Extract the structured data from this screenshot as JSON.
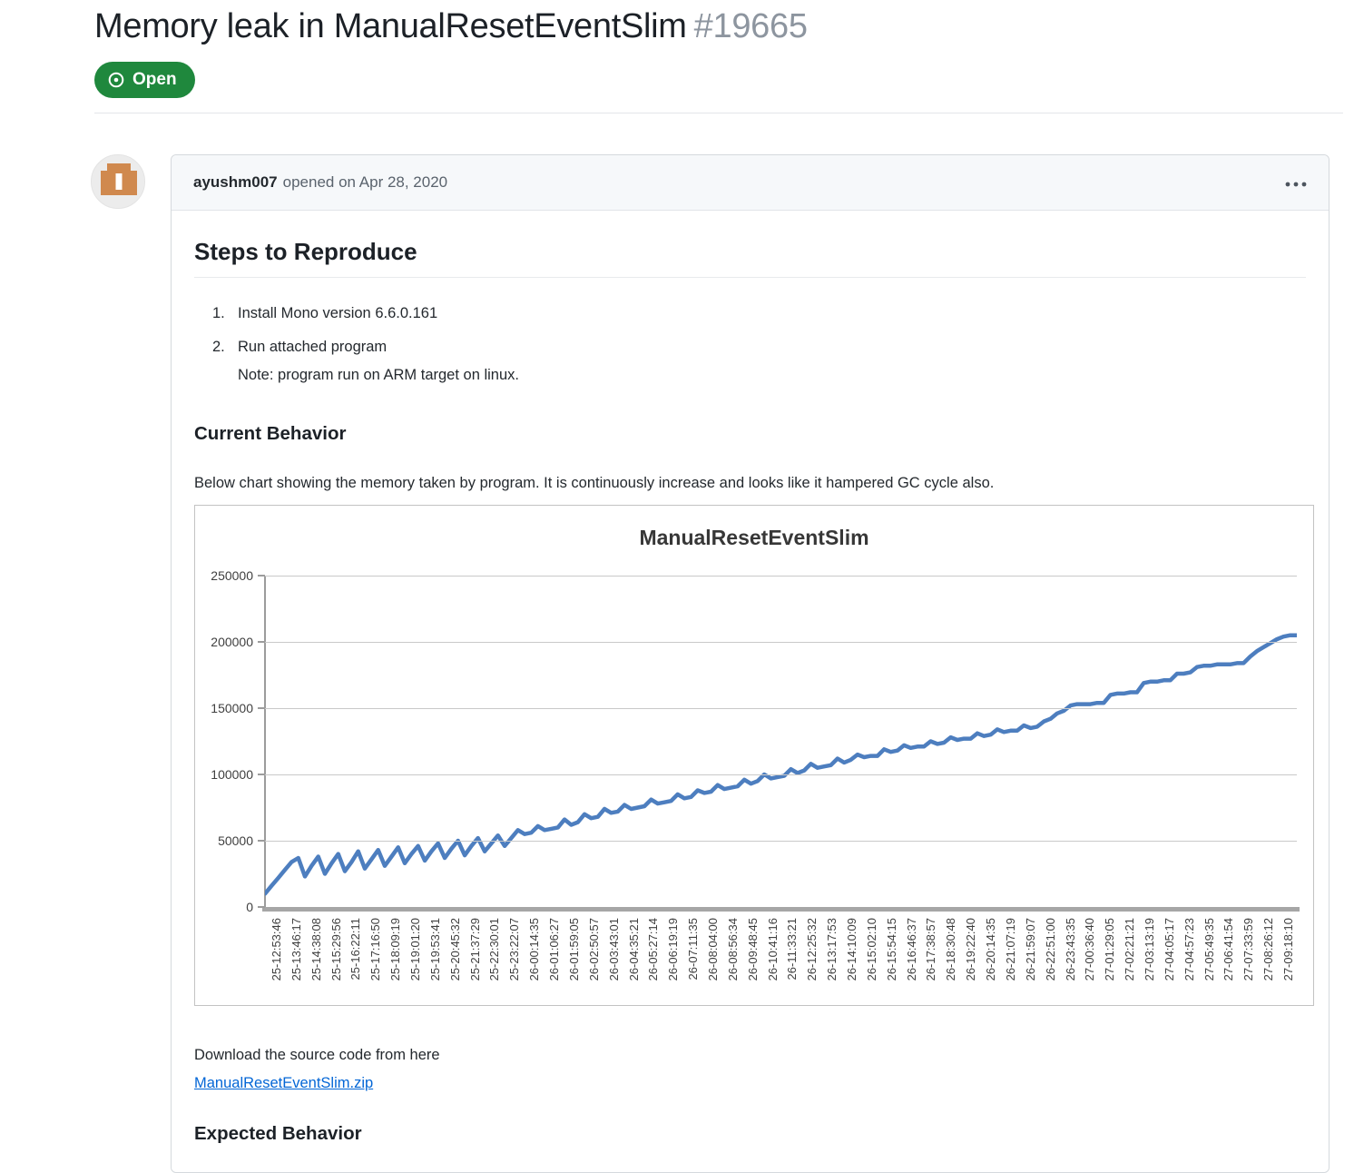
{
  "page": {
    "title": "Memory leak in ManualResetEventSlim",
    "issue_number": "#19665",
    "status_label": "Open"
  },
  "icons": {
    "status": "issue-opened-icon",
    "menu": "kebab-horizontal-icon"
  },
  "colors": {
    "open_badge_green": "#1f883d",
    "link_blue": "#0366d6",
    "chart_line_blue": "#4d7ebf",
    "gridline_gray": "#c9c9c9",
    "axis_gray": "#a6a6a6"
  },
  "comment": {
    "author": "ayushm007",
    "meta": "opened on Apr 28, 2020"
  },
  "body": {
    "heading_steps": "Steps to Reproduce",
    "steps": [
      {
        "marker": "1.",
        "text": "Install Mono version 6.6.0.161"
      },
      {
        "marker": "2.",
        "text": "Run attached program",
        "note": "Note: program run on ARM target on linux."
      }
    ],
    "heading_current": "Current Behavior",
    "current_text": "Below chart showing the memory taken by program. It is continuously increase and looks like it hampered GC cycle also.",
    "download_text": "Download the source code from here",
    "download_link": "ManualResetEventSlim.zip",
    "heading_expected": "Expected Behavior"
  },
  "chart_data": {
    "type": "line",
    "title": "ManualResetEventSlim",
    "xlabel": "",
    "ylabel": "",
    "ylim": [
      0,
      250000
    ],
    "yticks": [
      0,
      50000,
      100000,
      150000,
      200000,
      250000
    ],
    "grid": "horizontal",
    "legend": "none",
    "line_color": "#4d7ebf",
    "categories": [
      "25-12:53:46",
      "25-13:46:17",
      "25-14:38:08",
      "25-15:29:56",
      "25-16:22:11",
      "25-17:16:50",
      "25-18:09:19",
      "25-19:01:20",
      "25-19:53:41",
      "25-20:45:32",
      "25-21:37:29",
      "25-22:30:01",
      "25-23:22:07",
      "26-00:14:35",
      "26-01:06:27",
      "26-01:59:05",
      "26-02:50:57",
      "26-03:43:01",
      "26-04:35:21",
      "26-05:27:14",
      "26-06:19:19",
      "26-07:11:35",
      "26-08:04:00",
      "26-08:56:34",
      "26-09:48:45",
      "26-10:41:16",
      "26-11:33:21",
      "26-12:25:32",
      "26-13:17:53",
      "26-14:10:09",
      "26-15:02:10",
      "26-15:54:15",
      "26-16:46:37",
      "26-17:38:57",
      "26-18:30:48",
      "26-19:22:40",
      "26-20:14:35",
      "26-21:07:19",
      "26-21:59:07",
      "26-22:51:00",
      "26-23:43:35",
      "27-00:36:40",
      "27-01:29:05",
      "27-02:21:21",
      "27-03:13:19",
      "27-04:05:17",
      "27-04:57:23",
      "27-05:49:35",
      "27-06:41:54",
      "27-07:33:59",
      "27-08:26:12",
      "27-09:18:10"
    ],
    "values": [
      10000,
      16000,
      22000,
      28000,
      34000,
      37000,
      23000,
      31000,
      38000,
      25000,
      33000,
      40000,
      27000,
      34000,
      42000,
      29000,
      36000,
      43000,
      31000,
      38000,
      45000,
      33000,
      40000,
      46000,
      35000,
      42000,
      48000,
      37000,
      44000,
      50000,
      39000,
      46000,
      52000,
      42000,
      48000,
      54000,
      46000,
      52000,
      58000,
      55000,
      56000,
      61000,
      58000,
      59000,
      60000,
      66000,
      62000,
      64000,
      70000,
      67000,
      68000,
      74000,
      71000,
      72000,
      77000,
      74000,
      75000,
      76000,
      81000,
      78000,
      79000,
      80000,
      85000,
      82000,
      83000,
      88000,
      86000,
      87000,
      92000,
      89000,
      90000,
      91000,
      96000,
      93000,
      95000,
      100000,
      97000,
      98000,
      99000,
      104000,
      101000,
      103000,
      108000,
      105000,
      106000,
      107000,
      112000,
      109000,
      111000,
      115000,
      113000,
      114000,
      114000,
      119000,
      117000,
      118000,
      122000,
      120000,
      121000,
      121000,
      125000,
      123000,
      124000,
      128000,
      126000,
      127000,
      127000,
      131000,
      129000,
      130000,
      134000,
      132000,
      133000,
      133000,
      137000,
      135000,
      136000,
      140000,
      142000,
      146000,
      148000,
      152000,
      153000,
      153000,
      153000,
      154000,
      154000,
      160000,
      161000,
      161000,
      162000,
      162000,
      169000,
      170000,
      170000,
      171000,
      171000,
      176000,
      176000,
      177000,
      181000,
      182000,
      182000,
      183000,
      183000,
      183000,
      184000,
      184000,
      189000,
      193000,
      196000,
      199000,
      202000,
      204000,
      205000,
      205000
    ]
  }
}
